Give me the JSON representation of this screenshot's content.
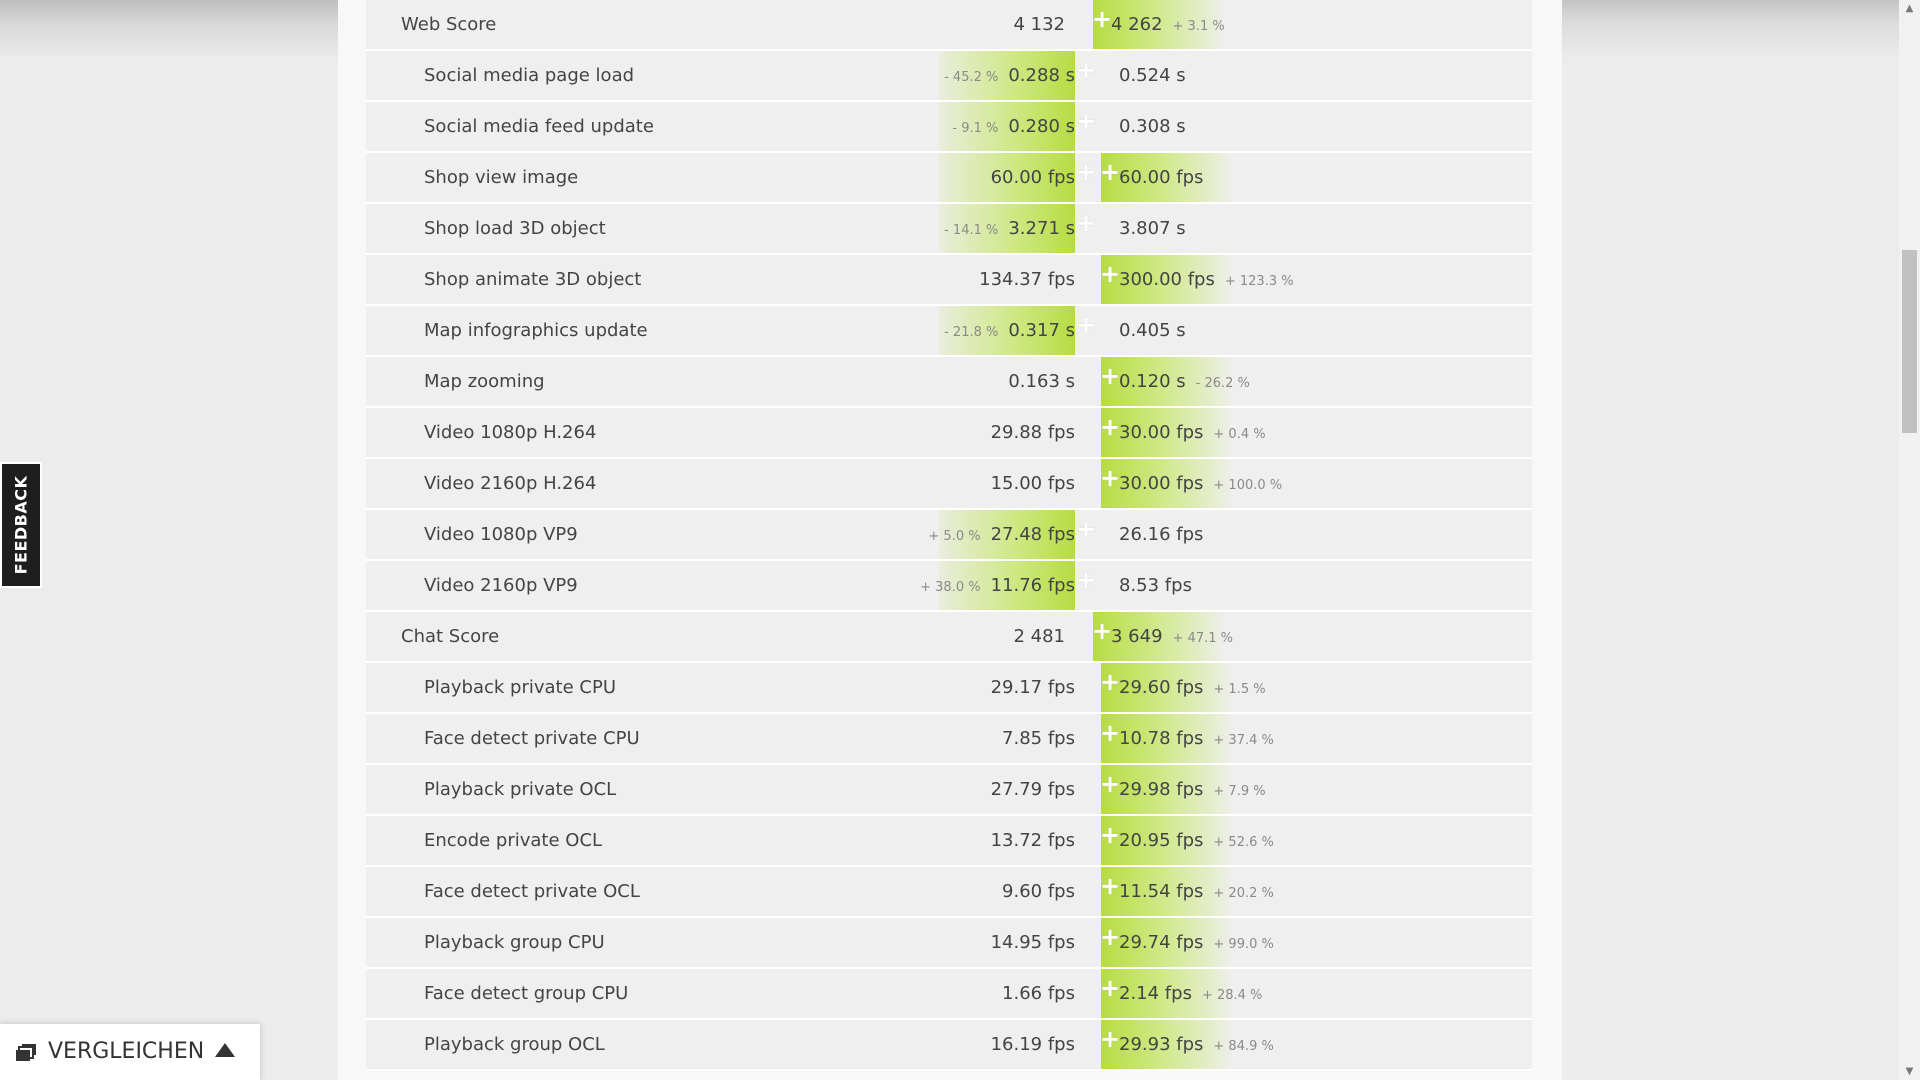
{
  "feedback": {
    "label": "FEEDBACK"
  },
  "compare_bar": {
    "label": "VERGLEICHEN",
    "icon": "layers-icon",
    "arrow": "caret-up-icon"
  },
  "rows": [
    {
      "type": "score",
      "label": "Web Score",
      "left": "4 132",
      "left_pct": "",
      "right": "4 262",
      "right_pct": "+ 3.1 %",
      "winner": "right"
    },
    {
      "type": "sub",
      "label": "Social media page load",
      "left": "0.288 s",
      "left_pct": "- 45.2 %",
      "right": "0.524 s",
      "right_pct": "",
      "winner": "left"
    },
    {
      "type": "sub",
      "label": "Social media feed update",
      "left": "0.280 s",
      "left_pct": "- 9.1 %",
      "right": "0.308 s",
      "right_pct": "",
      "winner": "left"
    },
    {
      "type": "sub",
      "label": "Shop view image",
      "left": "60.00 fps",
      "left_pct": "",
      "right": "60.00 fps",
      "right_pct": "",
      "winner": "both"
    },
    {
      "type": "sub",
      "label": "Shop load 3D object",
      "left": "3.271 s",
      "left_pct": "- 14.1 %",
      "right": "3.807 s",
      "right_pct": "",
      "winner": "left"
    },
    {
      "type": "sub",
      "label": "Shop animate 3D object",
      "left": "134.37 fps",
      "left_pct": "",
      "right": "300.00 fps",
      "right_pct": "+ 123.3 %",
      "winner": "right"
    },
    {
      "type": "sub",
      "label": "Map infographics update",
      "left": "0.317 s",
      "left_pct": "- 21.8 %",
      "right": "0.405 s",
      "right_pct": "",
      "winner": "left"
    },
    {
      "type": "sub",
      "label": "Map zooming",
      "left": "0.163 s",
      "left_pct": "",
      "right": "0.120 s",
      "right_pct": "- 26.2 %",
      "winner": "right"
    },
    {
      "type": "sub",
      "label": "Video 1080p H.264",
      "left": "29.88 fps",
      "left_pct": "",
      "right": "30.00 fps",
      "right_pct": "+ 0.4 %",
      "winner": "right"
    },
    {
      "type": "sub",
      "label": "Video 2160p H.264",
      "left": "15.00 fps",
      "left_pct": "",
      "right": "30.00 fps",
      "right_pct": "+ 100.0 %",
      "winner": "right"
    },
    {
      "type": "sub",
      "label": "Video 1080p VP9",
      "left": "27.48 fps",
      "left_pct": "+ 5.0 %",
      "right": "26.16 fps",
      "right_pct": "",
      "winner": "left"
    },
    {
      "type": "sub",
      "label": "Video 2160p VP9",
      "left": "11.76 fps",
      "left_pct": "+ 38.0 %",
      "right": "8.53 fps",
      "right_pct": "",
      "winner": "left"
    },
    {
      "type": "score",
      "label": "Chat Score",
      "left": "2 481",
      "left_pct": "",
      "right": "3 649",
      "right_pct": "+ 47.1 %",
      "winner": "right"
    },
    {
      "type": "sub",
      "label": "Playback private CPU",
      "left": "29.17 fps",
      "left_pct": "",
      "right": "29.60 fps",
      "right_pct": "+ 1.5 %",
      "winner": "right"
    },
    {
      "type": "sub",
      "label": "Face detect private CPU",
      "left": "7.85 fps",
      "left_pct": "",
      "right": "10.78 fps",
      "right_pct": "+ 37.4 %",
      "winner": "right"
    },
    {
      "type": "sub",
      "label": "Playback private OCL",
      "left": "27.79 fps",
      "left_pct": "",
      "right": "29.98 fps",
      "right_pct": "+ 7.9 %",
      "winner": "right"
    },
    {
      "type": "sub",
      "label": "Encode private OCL",
      "left": "13.72 fps",
      "left_pct": "",
      "right": "20.95 fps",
      "right_pct": "+ 52.6 %",
      "winner": "right"
    },
    {
      "type": "sub",
      "label": "Face detect private OCL",
      "left": "9.60 fps",
      "left_pct": "",
      "right": "11.54 fps",
      "right_pct": "+ 20.2 %",
      "winner": "right"
    },
    {
      "type": "sub",
      "label": "Playback group CPU",
      "left": "14.95 fps",
      "left_pct": "",
      "right": "29.74 fps",
      "right_pct": "+ 99.0 %",
      "winner": "right"
    },
    {
      "type": "sub",
      "label": "Face detect group CPU",
      "left": "1.66 fps",
      "left_pct": "",
      "right": "2.14 fps",
      "right_pct": "+ 28.4 %",
      "winner": "right"
    },
    {
      "type": "sub",
      "label": "Playback group OCL",
      "left": "16.19 fps",
      "left_pct": "",
      "right": "29.93 fps",
      "right_pct": "+ 84.9 %",
      "winner": "right"
    }
  ],
  "colors": {
    "highlight": "#b7dc42",
    "row_bg": "#efefef",
    "page_bg": "#ececec"
  }
}
